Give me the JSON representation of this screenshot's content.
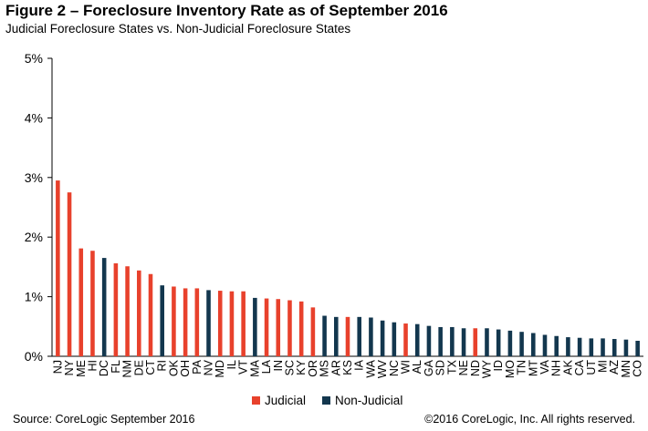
{
  "header": {
    "title": "Figure 2 – Foreclosure Inventory Rate as of September 2016",
    "subtitle": "Judicial Foreclosure States vs. Non-Judicial Foreclosure States"
  },
  "footer": {
    "source": "Source: CoreLogic  September 2016",
    "copyright": "©2016 CoreLogic, Inc.  All rights reserved."
  },
  "legend": [
    {
      "name": "Judicial",
      "color": "#e8412c"
    },
    {
      "name": "Non-Judicial",
      "color": "#13374e"
    }
  ],
  "chart_data": {
    "type": "bar",
    "ylim": [
      0,
      5
    ],
    "yticks": [
      "0%",
      "1%",
      "2%",
      "3%",
      "4%",
      "5%"
    ],
    "grid": false,
    "legend_placement": "bottom",
    "categories": [
      "NJ",
      "NY",
      "ME",
      "HI",
      "DC",
      "FL",
      "NM",
      "DE",
      "CT",
      "RI",
      "OK",
      "OH",
      "PA",
      "NV",
      "MD",
      "IL",
      "VT",
      "MA",
      "LA",
      "IN",
      "SC",
      "KY",
      "OR",
      "MS",
      "AR",
      "KS",
      "IA",
      "WA",
      "WV",
      "NC",
      "WI",
      "AL",
      "GA",
      "SD",
      "TX",
      "NE",
      "ND",
      "WY",
      "ID",
      "MO",
      "TN",
      "MT",
      "VA",
      "NH",
      "AK",
      "CA",
      "UT",
      "MI",
      "AZ",
      "MN",
      "CO"
    ],
    "values": [
      2.95,
      2.75,
      1.81,
      1.77,
      1.65,
      1.56,
      1.51,
      1.44,
      1.38,
      1.19,
      1.17,
      1.14,
      1.14,
      1.11,
      1.1,
      1.09,
      1.09,
      0.98,
      0.97,
      0.96,
      0.94,
      0.92,
      0.82,
      0.68,
      0.66,
      0.66,
      0.66,
      0.65,
      0.6,
      0.57,
      0.55,
      0.54,
      0.51,
      0.49,
      0.49,
      0.47,
      0.47,
      0.47,
      0.45,
      0.43,
      0.41,
      0.39,
      0.36,
      0.34,
      0.32,
      0.31,
      0.3,
      0.3,
      0.29,
      0.28,
      0.26
    ],
    "groups": [
      "Judicial",
      "Judicial",
      "Judicial",
      "Judicial",
      "Non-Judicial",
      "Judicial",
      "Judicial",
      "Judicial",
      "Judicial",
      "Non-Judicial",
      "Judicial",
      "Judicial",
      "Judicial",
      "Non-Judicial",
      "Judicial",
      "Judicial",
      "Judicial",
      "Non-Judicial",
      "Judicial",
      "Judicial",
      "Judicial",
      "Judicial",
      "Judicial",
      "Non-Judicial",
      "Non-Judicial",
      "Judicial",
      "Non-Judicial",
      "Non-Judicial",
      "Non-Judicial",
      "Non-Judicial",
      "Judicial",
      "Non-Judicial",
      "Non-Judicial",
      "Non-Judicial",
      "Non-Judicial",
      "Non-Judicial",
      "Judicial",
      "Non-Judicial",
      "Non-Judicial",
      "Non-Judicial",
      "Non-Judicial",
      "Non-Judicial",
      "Non-Judicial",
      "Non-Judicial",
      "Non-Judicial",
      "Non-Judicial",
      "Non-Judicial",
      "Non-Judicial",
      "Non-Judicial",
      "Non-Judicial",
      "Non-Judicial"
    ]
  }
}
